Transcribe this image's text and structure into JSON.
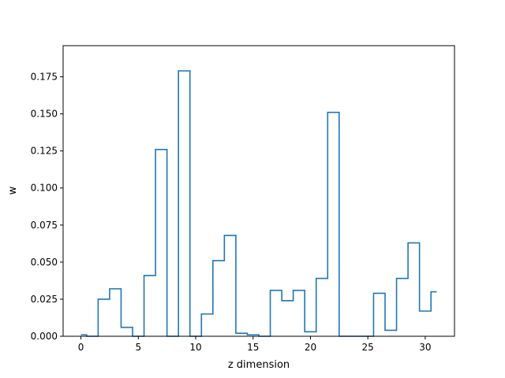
{
  "chart_data": {
    "type": "line",
    "drawstyle": "steps",
    "title": "",
    "xlabel": "z dimension",
    "ylabel": "w",
    "xlim": [
      -1.55,
      32.55
    ],
    "ylim": [
      0,
      0.196
    ],
    "x_ticks": [
      0,
      5,
      10,
      15,
      20,
      25,
      30
    ],
    "y_ticks": [
      0.0,
      0.025,
      0.05,
      0.075,
      0.1,
      0.125,
      0.15,
      0.175
    ],
    "y_tick_labels": [
      "0.000",
      "0.025",
      "0.050",
      "0.075",
      "0.100",
      "0.125",
      "0.150",
      "0.175"
    ],
    "grid": false,
    "line_color": "#1f77b4",
    "series": [
      {
        "x": [
          0,
          1,
          2,
          3,
          4,
          5,
          6,
          7,
          8,
          9,
          10,
          11,
          12,
          13,
          14,
          15,
          16,
          17,
          18,
          19,
          20,
          21,
          22,
          23,
          24,
          25,
          26,
          27,
          28,
          29,
          30,
          31
        ],
        "values": [
          0.001,
          0.0,
          0.025,
          0.032,
          0.006,
          0.0,
          0.041,
          0.126,
          0.0,
          0.179,
          0.0,
          0.015,
          0.051,
          0.068,
          0.002,
          0.001,
          0.0,
          0.031,
          0.024,
          0.031,
          0.003,
          0.039,
          0.151,
          0.0,
          0.0,
          0.0,
          0.029,
          0.004,
          0.039,
          0.063,
          0.017,
          0.03
        ]
      }
    ]
  }
}
